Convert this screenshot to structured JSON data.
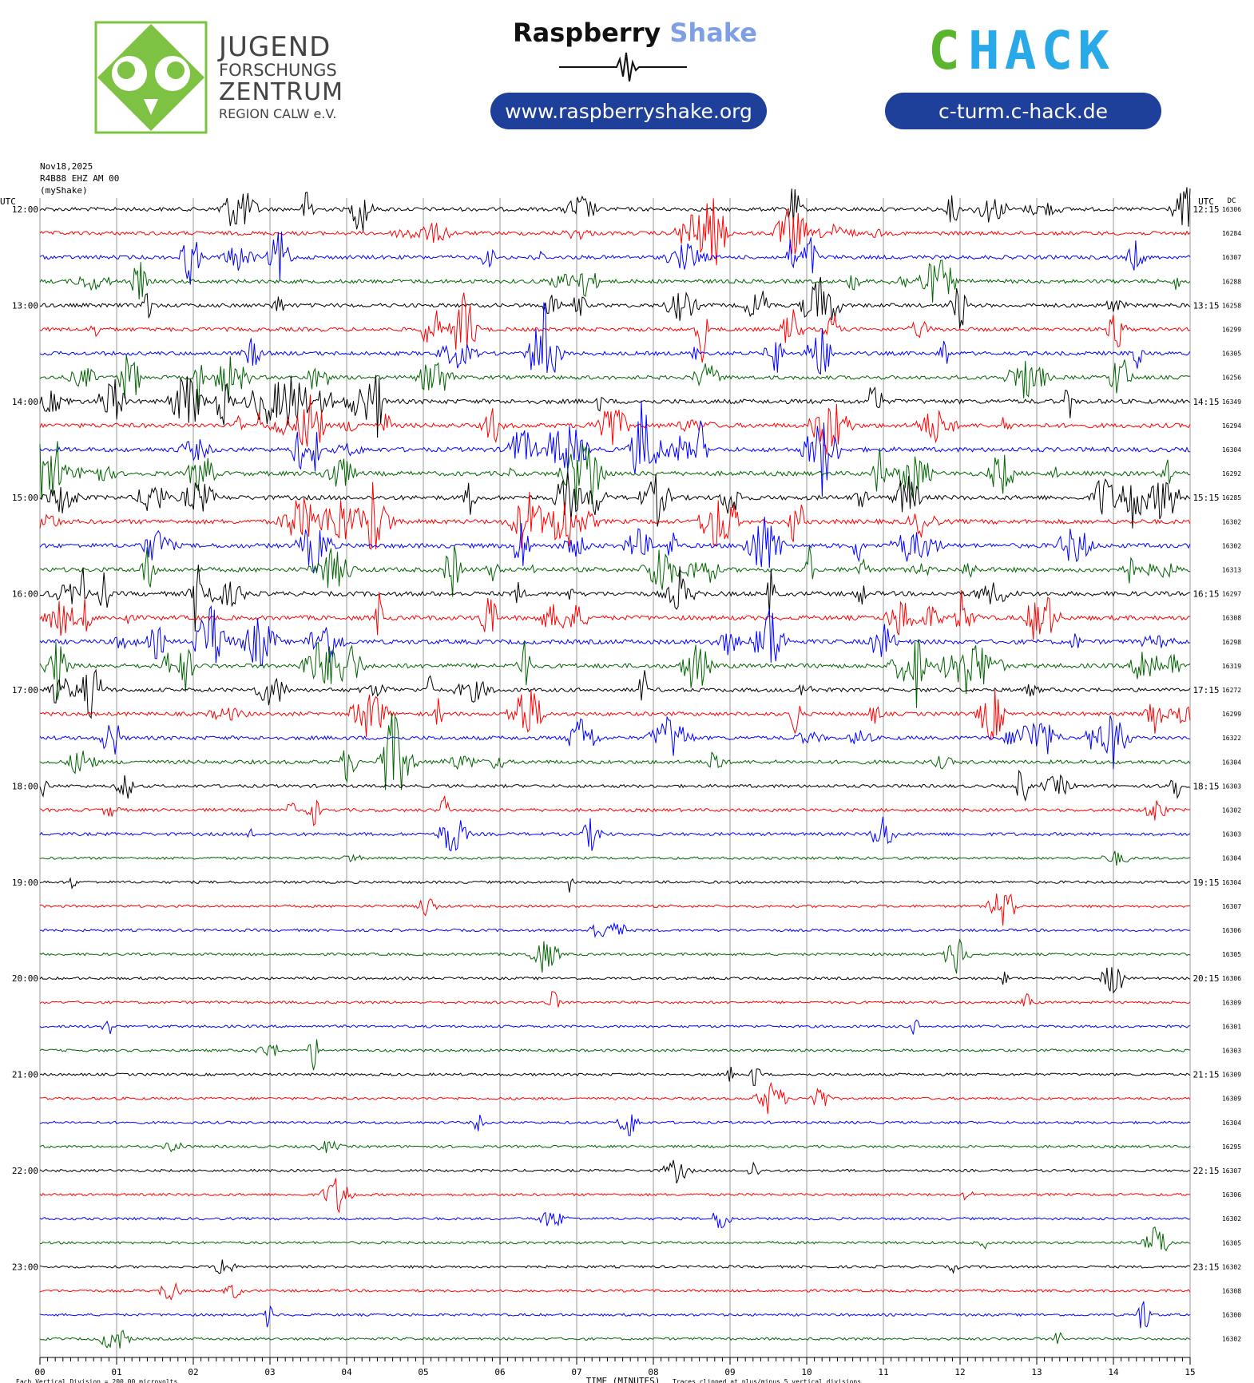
{
  "header": {
    "jfz": {
      "line1": "JUGEND",
      "line2": "FORSCHUNGS",
      "line3": "ZENTRUM",
      "line4": "REGION CALW e.V.",
      "logo_green": "#7dc242"
    },
    "raspberry_shake": {
      "brand_dark": "Raspberry",
      "brand_light": "Shake",
      "url": "www.raspberryshake.org"
    },
    "chack": {
      "logo_left": "C",
      "logo_right": "HACK",
      "logo_green": "#5ab52e",
      "logo_blue": "#2aa9e8",
      "url": "c-turm.c-hack.de"
    },
    "pill_color": "#1e3f9a"
  },
  "chart_data": {
    "type": "line",
    "chart_kind": "helicorder",
    "date": "Nov18,2025",
    "station": "R4B88 EHZ AM 00",
    "source": "(myShake)",
    "left_utc_label": "UTC",
    "right_utc_label": "UTC",
    "dc_label": "DC",
    "xlabel": "TIME (MINUTES)",
    "x_ticks": [
      "00",
      "01",
      "02",
      "03",
      "04",
      "05",
      "06",
      "07",
      "08",
      "09",
      "10",
      "11",
      "12",
      "13",
      "14",
      "15"
    ],
    "xlim": [
      0,
      15
    ],
    "footer_left": "Each Vertical Division =  200.00 microvolts",
    "footer_right": "Traces clipped at plus/minus 5 vertical divisions",
    "trace_colors": [
      "#000000",
      "#ff0000",
      "#0000ff",
      "#006400"
    ],
    "hour_labels_left": [
      "12:00",
      "13:00",
      "14:00",
      "15:00",
      "16:00",
      "17:00",
      "18:00",
      "19:00",
      "20:00",
      "21:00",
      "22:00",
      "23:00"
    ],
    "hour_labels_right": [
      "12:15",
      "13:15",
      "14:15",
      "15:15",
      "16:15",
      "17:15",
      "18:15",
      "19:15",
      "20:15",
      "21:15",
      "22:15",
      "23:15"
    ],
    "dc_offsets": [
      16306,
      16284,
      16307,
      16288,
      16258,
      16299,
      16305,
      16256,
      16349,
      16294,
      16304,
      16292,
      16285,
      16302,
      16302,
      16313,
      16297,
      16308,
      16298,
      16319,
      16272,
      16299,
      16322,
      16304,
      16303,
      16302,
      16303,
      16304,
      16304,
      16307,
      16306,
      16305,
      16306,
      16309,
      16301,
      16303,
      16309,
      16309,
      16304,
      16295,
      16307,
      16306,
      16302,
      16305,
      16302,
      16308,
      16300,
      16302
    ],
    "activity_level": [
      3,
      3,
      3,
      3,
      3,
      3,
      3,
      3,
      4,
      4,
      4,
      4,
      4,
      4,
      4,
      4,
      4,
      4,
      4,
      4,
      3,
      3,
      3,
      3,
      2,
      2,
      2,
      1,
      1,
      1,
      1,
      1,
      1,
      1,
      1,
      1,
      1,
      1,
      1,
      1,
      1,
      1,
      1,
      1,
      1,
      1,
      1,
      1
    ]
  }
}
